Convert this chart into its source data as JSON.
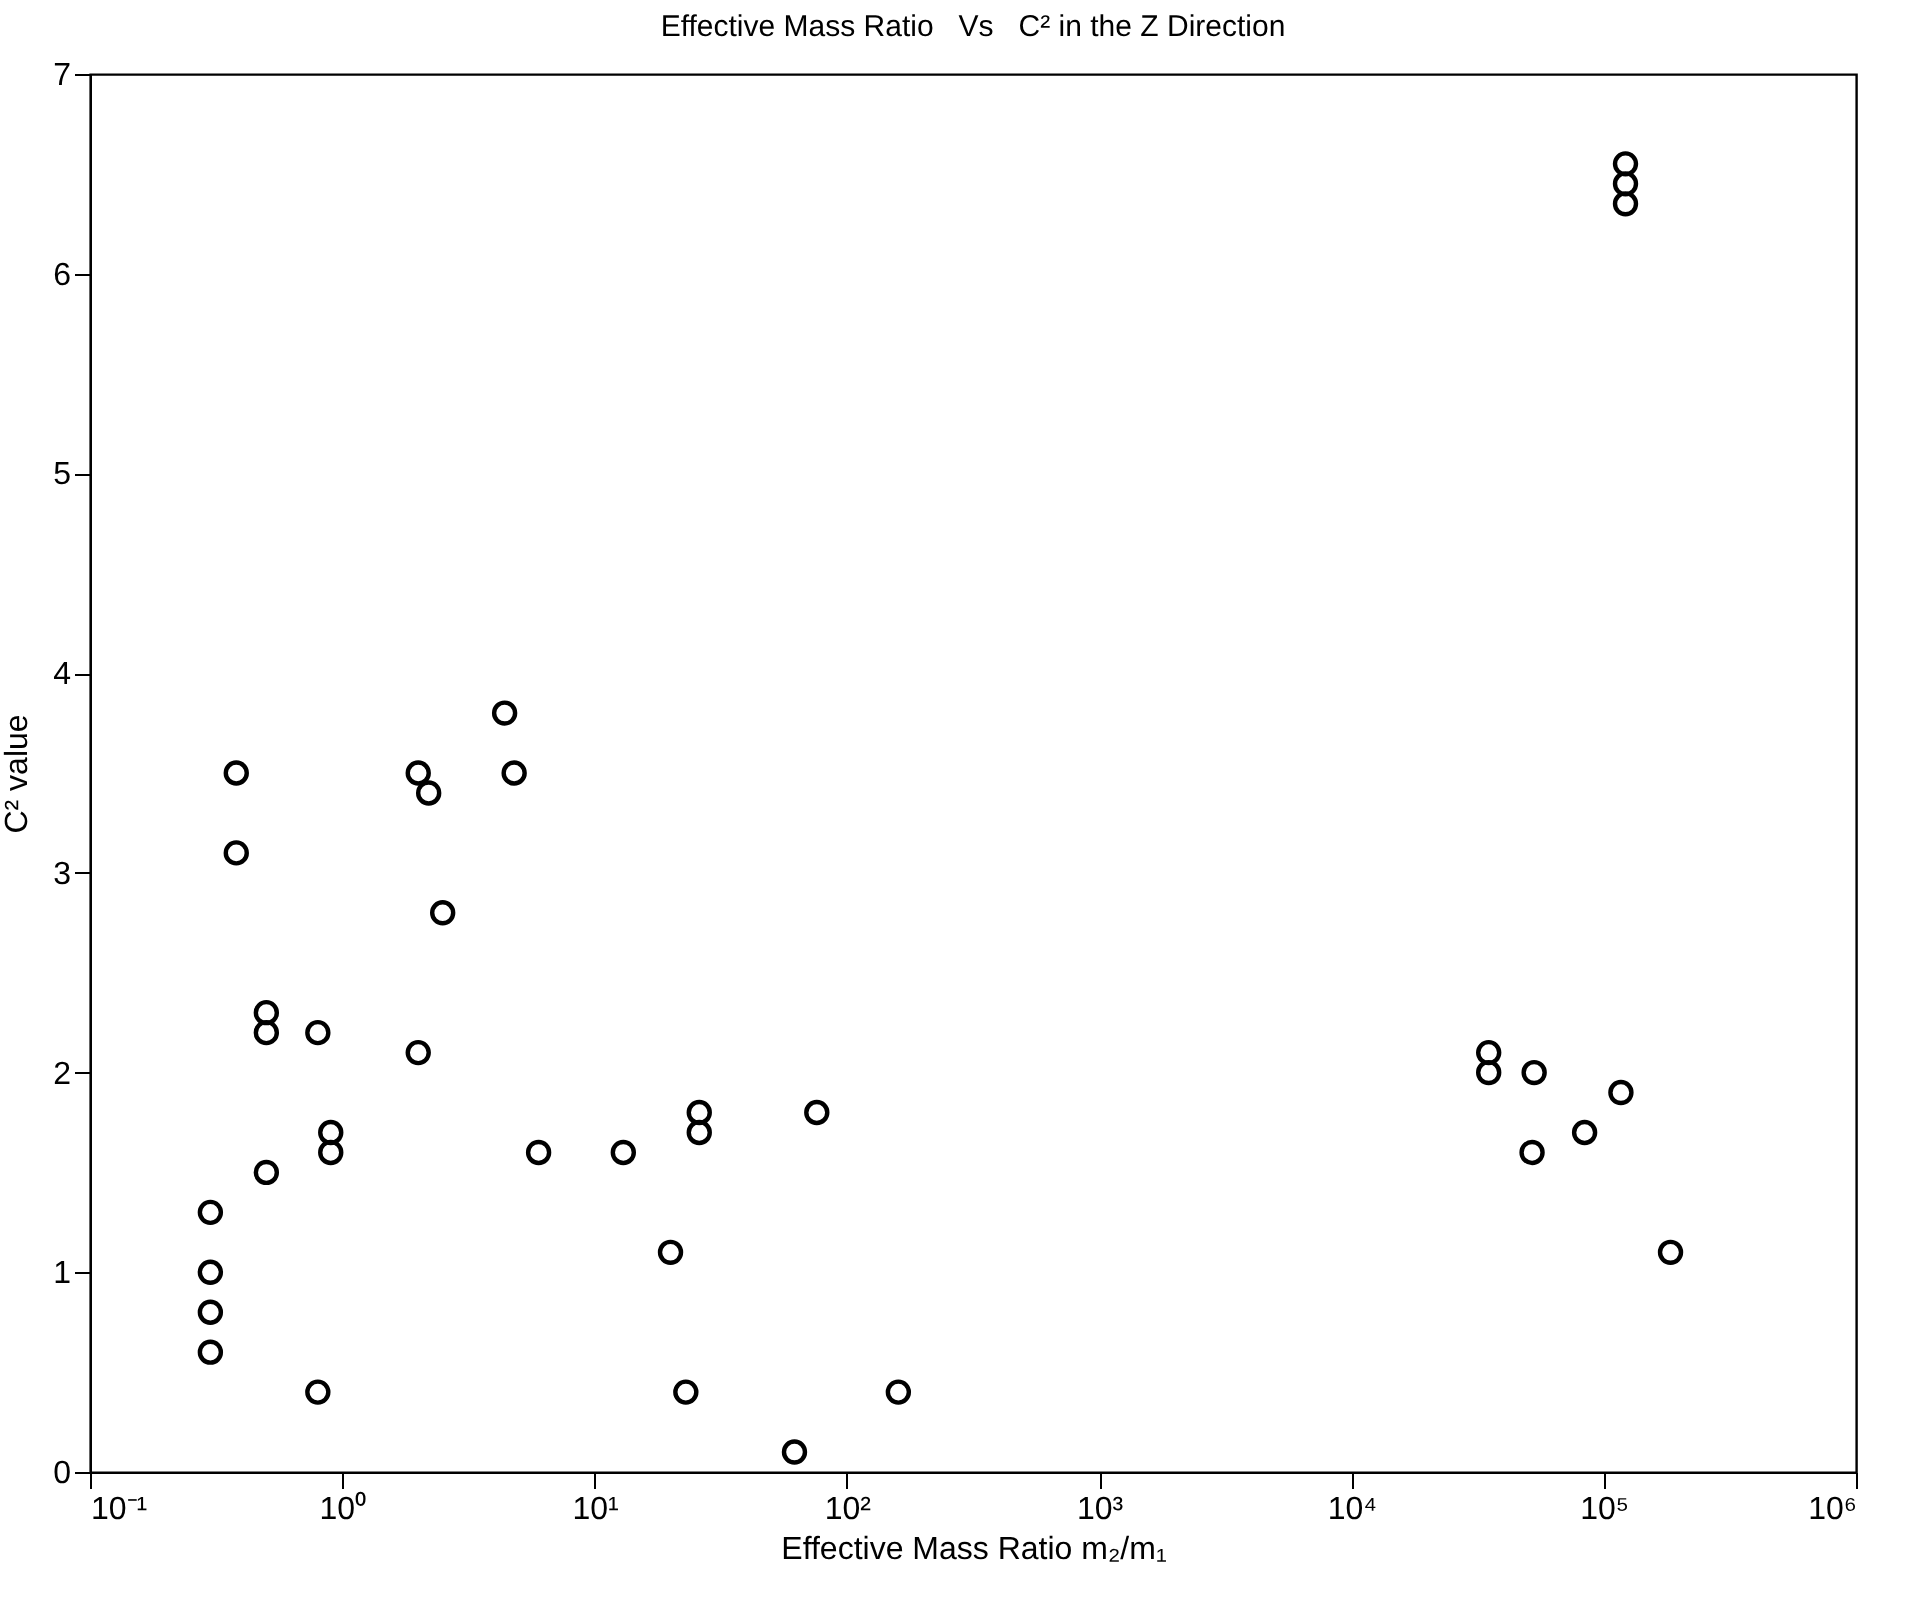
{
  "chart_data": {
    "type": "scatter",
    "title": "Effective Mass Ratio   Vs   C² in the Z Direction",
    "xlabel": "Effective Mass Ratio m₂/m₁",
    "ylabel": "C² value",
    "log": "x",
    "grid": false,
    "legend": false,
    "marker": "circle",
    "xlim": [
      0.1,
      1000000
    ],
    "xticks": [
      {
        "value": 0.1,
        "label": "10⁻¹"
      },
      {
        "value": 1,
        "label": "10⁰"
      },
      {
        "value": 10,
        "label": "10¹"
      },
      {
        "value": 100,
        "label": "10²"
      },
      {
        "value": 1000,
        "label": "10³"
      },
      {
        "value": 10000,
        "label": "10⁴"
      },
      {
        "value": 100000,
        "label": "10⁵"
      },
      {
        "value": 1000000,
        "label": "10⁶"
      }
    ],
    "ylim": [
      0,
      7
    ],
    "yticks": [
      0,
      1,
      2,
      3,
      4,
      5,
      6,
      7
    ],
    "series": [
      {
        "color": "#000000",
        "x": [
          0.3,
          0.3,
          0.3,
          0.3,
          0.38,
          0.38,
          0.5,
          0.5,
          0.5,
          0.8,
          0.8,
          0.9,
          0.9,
          2,
          2,
          2.2,
          2.5,
          4.4,
          4.8,
          6,
          13,
          20,
          23,
          26,
          26,
          62,
          76,
          160,
          35000,
          35000,
          53000,
          52000,
          84000,
          117000,
          184000,
          122000,
          122000,
          122000
        ],
        "values": [
          1.3,
          1,
          0.8,
          0.6,
          3.5,
          3.1,
          2.3,
          2.2,
          1.5,
          2.2,
          0.4,
          1.7,
          1.6,
          2.1,
          3.5,
          3.4,
          2.8,
          3.8,
          3.5,
          1.6,
          1.6,
          1.1,
          0.4,
          1.8,
          1.7,
          0.1,
          1.8,
          0.4,
          2.1,
          2,
          2,
          1.6,
          1.7,
          1.9,
          1.1,
          6.55,
          6.45,
          6.35
        ]
      }
    ]
  }
}
